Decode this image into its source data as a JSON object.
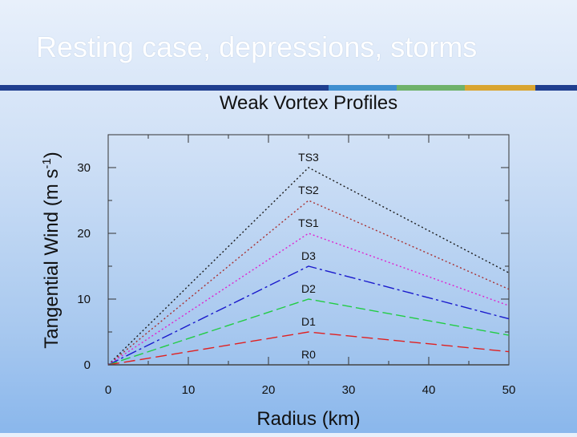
{
  "slide": {
    "title": "Resting case, depressions, storms",
    "rule_colors": [
      "#1f3f8f",
      "#3f8fd0",
      "#6fb26a",
      "#d9a531",
      "#1f3f8f"
    ]
  },
  "chart_data": {
    "type": "line",
    "title": "Weak Vortex Profiles",
    "xlabel": "Radius (km)",
    "ylabel": "Tangential Wind (m s",
    "ylabel_sup": "-1",
    "ylabel_close": ")",
    "xlim": [
      0,
      50
    ],
    "ylim": [
      0,
      35
    ],
    "xticks": [
      0,
      10,
      20,
      30,
      40,
      50
    ],
    "yticks": [
      0,
      10,
      20,
      30
    ],
    "grid": false,
    "series": [
      {
        "name": "TS3",
        "color": "#1a1a1a",
        "dash": "2,3",
        "x": [
          0,
          25,
          50
        ],
        "y": [
          0,
          30,
          14
        ]
      },
      {
        "name": "TS2",
        "color": "#a83030",
        "dash": "2,3",
        "x": [
          0,
          25,
          50
        ],
        "y": [
          0,
          25,
          11.5
        ]
      },
      {
        "name": "TS1",
        "color": "#e020d0",
        "dash": "2,3",
        "x": [
          0,
          25,
          50
        ],
        "y": [
          0,
          20,
          9
        ]
      },
      {
        "name": "D3",
        "color": "#1a1acc",
        "dash": "14,4,3,4",
        "x": [
          0,
          25,
          50
        ],
        "y": [
          0,
          15,
          7
        ]
      },
      {
        "name": "D2",
        "color": "#22cc44",
        "dash": "12,5",
        "x": [
          0,
          25,
          50
        ],
        "y": [
          0,
          10,
          4.5
        ]
      },
      {
        "name": "D1",
        "color": "#e02020",
        "dash": "14,6",
        "x": [
          0,
          25,
          50
        ],
        "y": [
          0,
          5,
          2
        ]
      },
      {
        "name": "R0",
        "color": "#444444",
        "dash": "",
        "x": [
          0,
          25,
          50
        ],
        "y": [
          0,
          0,
          0
        ]
      }
    ]
  }
}
